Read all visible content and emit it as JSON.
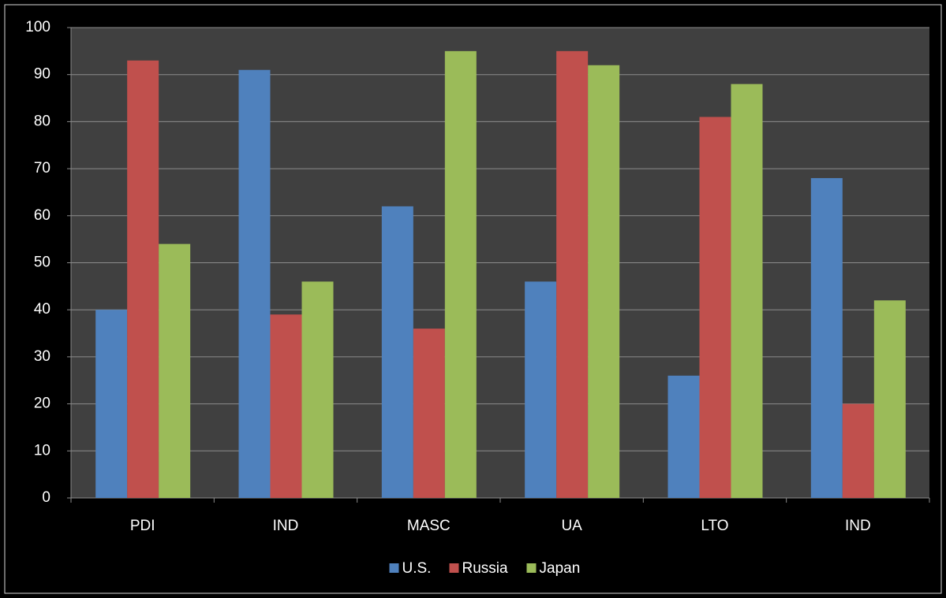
{
  "chart_data": {
    "type": "bar",
    "categories": [
      "PDI",
      "IND",
      "MASC",
      "UA",
      "LTO",
      "IND"
    ],
    "series": [
      {
        "name": "U.S.",
        "color": "#4f81bd",
        "values": [
          40,
          91,
          62,
          46,
          26,
          68
        ]
      },
      {
        "name": "Russia",
        "color": "#c0504d",
        "values": [
          93,
          39,
          36,
          95,
          81,
          20
        ]
      },
      {
        "name": "Japan",
        "color": "#9bbb59",
        "values": [
          54,
          46,
          95,
          92,
          88,
          42
        ]
      }
    ],
    "ylim": [
      0,
      100
    ],
    "yticks": [
      0,
      10,
      20,
      30,
      40,
      50,
      60,
      70,
      80,
      90,
      100
    ],
    "grid": true,
    "legend": "bottom"
  }
}
